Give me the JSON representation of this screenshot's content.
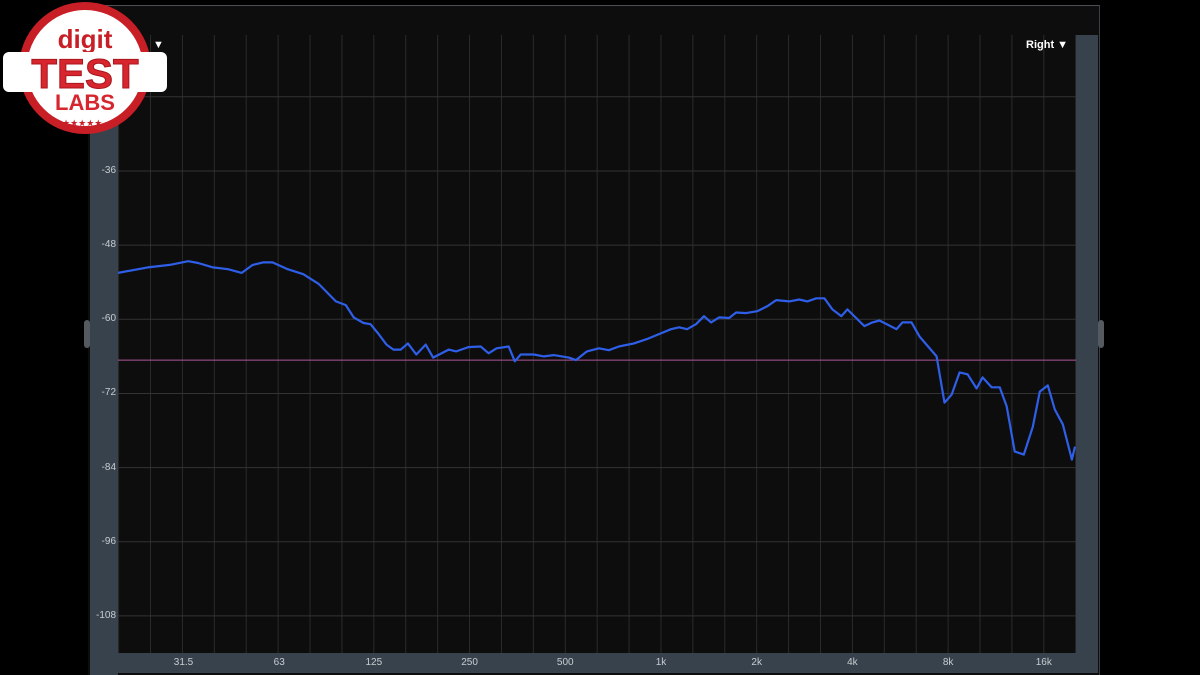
{
  "channel_left_dropdown": "▼",
  "channel_right_dropdown": "Right ▼",
  "logo": {
    "line1": "digit",
    "line2": "TEST",
    "line3": "LABS"
  },
  "colors": {
    "curve": "#2f5fe8",
    "reference": "#b0559a",
    "grid": "#2b2b2b",
    "panel": "#37424d",
    "logo_red": "#d7262e"
  },
  "chart_data": {
    "type": "line",
    "title": "",
    "xlabel": "",
    "ylabel": "",
    "x_scale": "log",
    "xlim": [
      19.6,
      20200
    ],
    "ylim": [
      -114,
      -14
    ],
    "grid": true,
    "x_ticks": [
      {
        "value": 31.5,
        "label": "31.5"
      },
      {
        "value": 63,
        "label": "63"
      },
      {
        "value": 125,
        "label": "125"
      },
      {
        "value": 250,
        "label": "250"
      },
      {
        "value": 500,
        "label": "500"
      },
      {
        "value": 1000,
        "label": "1k"
      },
      {
        "value": 2000,
        "label": "2k"
      },
      {
        "value": 4000,
        "label": "4k"
      },
      {
        "value": 8000,
        "label": "8k"
      },
      {
        "value": 16000,
        "label": "16k"
      }
    ],
    "y_ticks": [
      {
        "value": -36,
        "label": "-36"
      },
      {
        "value": -48,
        "label": "-48"
      },
      {
        "value": -60,
        "label": "-60"
      },
      {
        "value": -72,
        "label": "-72"
      },
      {
        "value": -84,
        "label": "-84"
      },
      {
        "value": -96,
        "label": "-96"
      },
      {
        "value": -108,
        "label": "-108"
      }
    ],
    "y_gridlines": [
      -24,
      -36,
      -48,
      -60,
      -72,
      -84,
      -96,
      -108
    ],
    "reference_line_db": -66.6,
    "series": [
      {
        "x": [
          19.6,
          24.3,
          28.5,
          32.6,
          35,
          39,
          43.5,
          48,
          52,
          56,
          60,
          67,
          75,
          84,
          90,
          95,
          102,
          108,
          116,
          122,
          129,
          137,
          144,
          152,
          160,
          170,
          182,
          192,
          215,
          227,
          248,
          271,
          287,
          304,
          332,
          347,
          362,
          398,
          428,
          460,
          513,
          540,
          585,
          638,
          686,
          737,
          822,
          903,
          986,
          1075,
          1140,
          1208,
          1289,
          1366,
          1438,
          1523,
          1638,
          1723,
          1853,
          2007,
          2158,
          2304,
          2532,
          2723,
          2885,
          3080,
          3265,
          3460,
          3693,
          3858,
          4364,
          4625,
          4866,
          5506,
          5751,
          6138,
          6506,
          7360,
          7796,
          8205,
          8694,
          9216,
          9835,
          10273,
          10966,
          11622,
          12233,
          12962,
          13839,
          14775,
          15543,
          16472,
          17330,
          18365,
          19606,
          20050
        ],
        "y": [
          -52.5,
          -51.6,
          -51.2,
          -50.6,
          -50.9,
          -51.6,
          -51.9,
          -52.5,
          -51.2,
          -50.8,
          -50.8,
          -51.9,
          -52.7,
          -54.3,
          -55.9,
          -57.1,
          -57.7,
          -59.7,
          -60.6,
          -60.8,
          -62.3,
          -64.1,
          -64.9,
          -64.9,
          -63.9,
          -65.7,
          -64.1,
          -66.2,
          -64.9,
          -65.2,
          -64.5,
          -64.4,
          -65.5,
          -64.7,
          -64.4,
          -66.8,
          -65.7,
          -65.7,
          -66.0,
          -65.8,
          -66.2,
          -66.6,
          -65.2,
          -64.7,
          -65.0,
          -64.4,
          -63.9,
          -63.2,
          -62.4,
          -61.6,
          -61.3,
          -61.6,
          -60.8,
          -59.5,
          -60.5,
          -59.7,
          -59.8,
          -58.9,
          -59.0,
          -58.7,
          -57.9,
          -56.9,
          -57.1,
          -56.8,
          -57.1,
          -56.6,
          -56.6,
          -58.4,
          -59.5,
          -58.4,
          -61.1,
          -60.5,
          -60.2,
          -61.6,
          -60.5,
          -60.5,
          -62.8,
          -66.0,
          -73.5,
          -72.2,
          -68.6,
          -68.9,
          -71.2,
          -69.4,
          -71.0,
          -71.0,
          -74.1,
          -81.4,
          -81.9,
          -77.4,
          -71.7,
          -70.7,
          -74.6,
          -77.0,
          -82.7,
          -80.6
        ]
      }
    ]
  }
}
